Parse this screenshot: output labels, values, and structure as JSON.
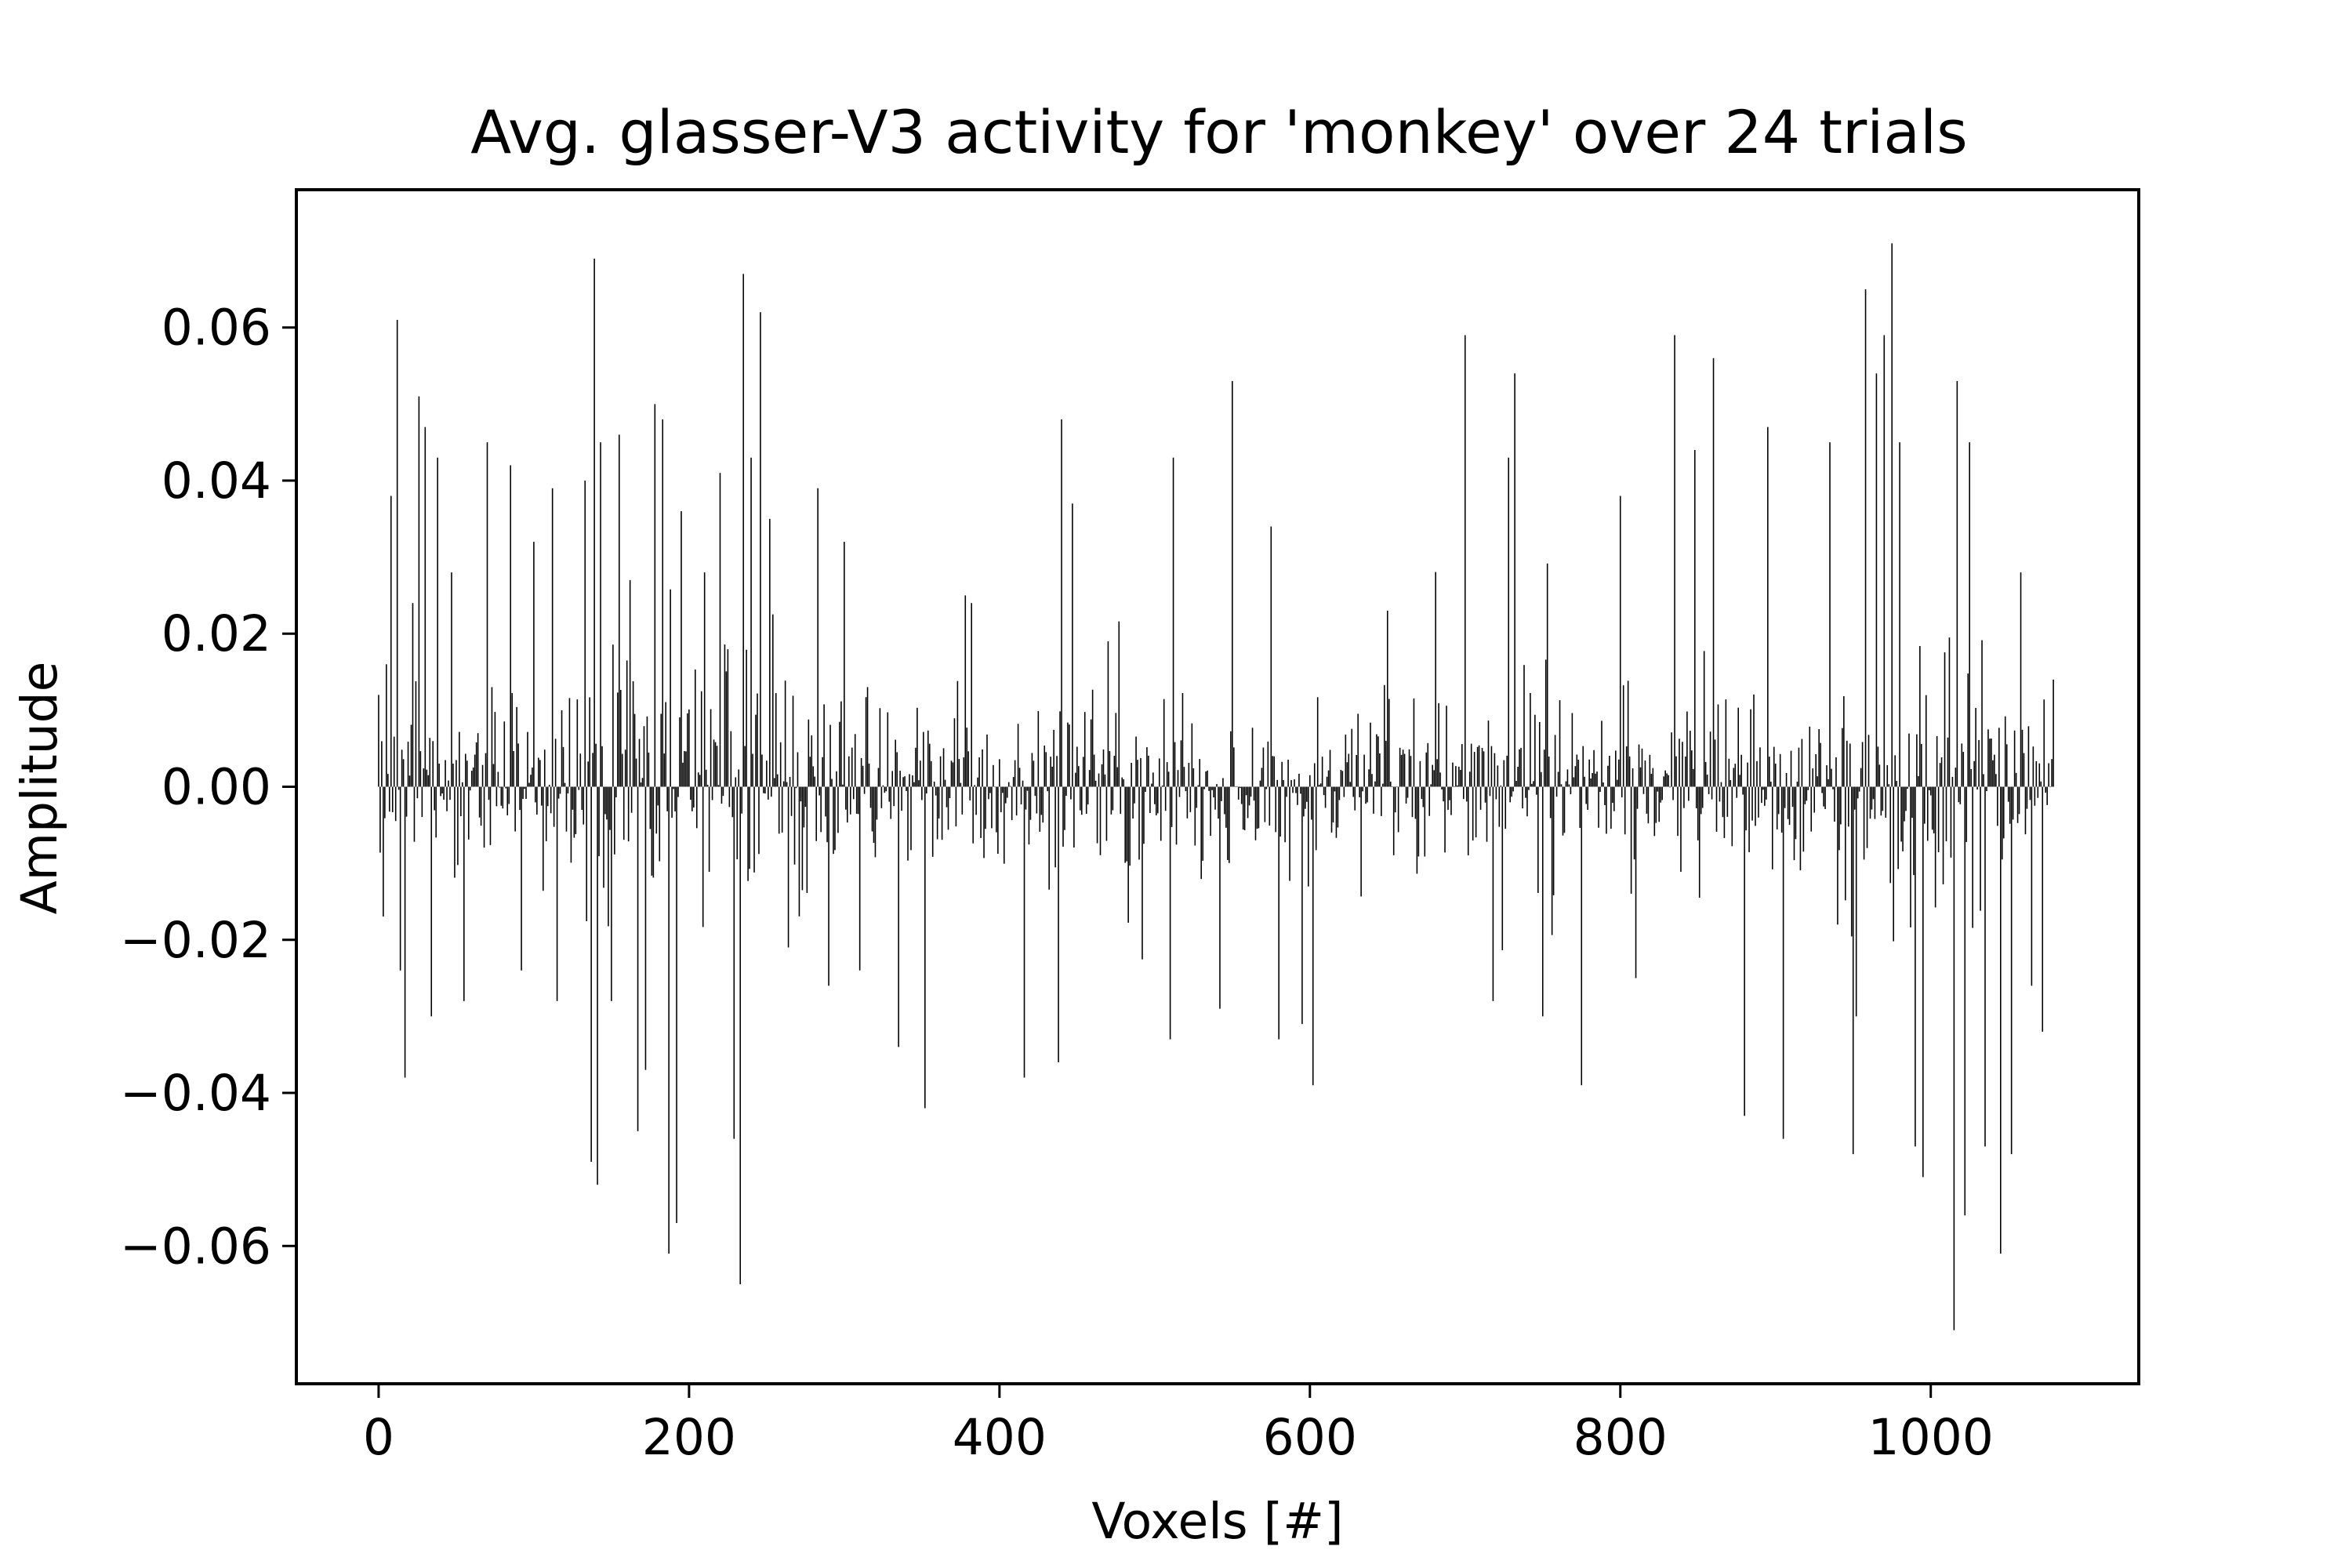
{
  "chart_data": {
    "type": "bar",
    "title": "Avg. glasser-V3 activity for 'monkey' over 24 trials",
    "xlabel": "Voxels [#]",
    "ylabel": "Amplitude",
    "xlim": [
      -53,
      1134
    ],
    "ylim": [
      -0.078,
      0.078
    ],
    "xticks": [
      0,
      200,
      400,
      600,
      800,
      1000
    ],
    "xtick_labels": [
      "0",
      "200",
      "400",
      "600",
      "800",
      "1000"
    ],
    "yticks": [
      -0.06,
      -0.04,
      -0.02,
      0.0,
      0.02,
      0.04,
      0.06
    ],
    "ytick_labels": [
      "−0.06",
      "−0.04",
      "−0.02",
      "0.00",
      "0.02",
      "0.04",
      "0.06"
    ],
    "grid": false,
    "legend": "none",
    "bar_color": "#000000",
    "bar_edge_color": "#000000",
    "n_bars": 1080,
    "peaks": [
      {
        "x": 0,
        "y": 0.012
      },
      {
        "x": 5,
        "y": 0.016
      },
      {
        "x": 8,
        "y": 0.038
      },
      {
        "x": 12,
        "y": 0.061
      },
      {
        "x": 14,
        "y": -0.024
      },
      {
        "x": 17,
        "y": -0.038
      },
      {
        "x": 22,
        "y": 0.024
      },
      {
        "x": 26,
        "y": 0.051
      },
      {
        "x": 30,
        "y": 0.047
      },
      {
        "x": 34,
        "y": -0.03
      },
      {
        "x": 38,
        "y": 0.043
      },
      {
        "x": 47,
        "y": 0.028
      },
      {
        "x": 55,
        "y": -0.028
      },
      {
        "x": 70,
        "y": 0.045
      },
      {
        "x": 85,
        "y": 0.042
      },
      {
        "x": 92,
        "y": -0.024
      },
      {
        "x": 100,
        "y": 0.032
      },
      {
        "x": 112,
        "y": 0.039
      },
      {
        "x": 115,
        "y": -0.028
      },
      {
        "x": 133,
        "y": 0.04
      },
      {
        "x": 137,
        "y": -0.049
      },
      {
        "x": 139,
        "y": 0.069
      },
      {
        "x": 141,
        "y": -0.052
      },
      {
        "x": 143,
        "y": 0.045
      },
      {
        "x": 150,
        "y": -0.028
      },
      {
        "x": 155,
        "y": 0.046
      },
      {
        "x": 162,
        "y": 0.027
      },
      {
        "x": 167,
        "y": -0.045
      },
      {
        "x": 172,
        "y": -0.037
      },
      {
        "x": 178,
        "y": 0.05
      },
      {
        "x": 183,
        "y": 0.048
      },
      {
        "x": 187,
        "y": -0.061
      },
      {
        "x": 192,
        "y": -0.057
      },
      {
        "x": 195,
        "y": 0.036
      },
      {
        "x": 210,
        "y": 0.028
      },
      {
        "x": 220,
        "y": 0.041
      },
      {
        "x": 229,
        "y": -0.046
      },
      {
        "x": 233,
        "y": -0.065
      },
      {
        "x": 235,
        "y": 0.067
      },
      {
        "x": 240,
        "y": 0.043
      },
      {
        "x": 246,
        "y": 0.062
      },
      {
        "x": 252,
        "y": 0.035
      },
      {
        "x": 264,
        "y": -0.021
      },
      {
        "x": 283,
        "y": 0.039
      },
      {
        "x": 290,
        "y": -0.026
      },
      {
        "x": 300,
        "y": 0.032
      },
      {
        "x": 310,
        "y": -0.024
      },
      {
        "x": 335,
        "y": -0.034
      },
      {
        "x": 352,
        "y": -0.042
      },
      {
        "x": 378,
        "y": 0.025
      },
      {
        "x": 382,
        "y": 0.024
      },
      {
        "x": 416,
        "y": -0.038
      },
      {
        "x": 438,
        "y": -0.036
      },
      {
        "x": 440,
        "y": 0.048
      },
      {
        "x": 447,
        "y": 0.037
      },
      {
        "x": 470,
        "y": 0.019
      },
      {
        "x": 510,
        "y": -0.033
      },
      {
        "x": 512,
        "y": 0.043
      },
      {
        "x": 542,
        "y": -0.029
      },
      {
        "x": 550,
        "y": 0.053
      },
      {
        "x": 575,
        "y": 0.034
      },
      {
        "x": 580,
        "y": -0.033
      },
      {
        "x": 595,
        "y": -0.031
      },
      {
        "x": 602,
        "y": -0.039
      },
      {
        "x": 650,
        "y": 0.023
      },
      {
        "x": 700,
        "y": 0.059
      },
      {
        "x": 718,
        "y": -0.028
      },
      {
        "x": 728,
        "y": 0.043
      },
      {
        "x": 732,
        "y": 0.054
      },
      {
        "x": 750,
        "y": -0.03
      },
      {
        "x": 775,
        "y": -0.039
      },
      {
        "x": 800,
        "y": 0.038
      },
      {
        "x": 810,
        "y": -0.025
      },
      {
        "x": 835,
        "y": 0.059
      },
      {
        "x": 848,
        "y": 0.044
      },
      {
        "x": 860,
        "y": 0.056
      },
      {
        "x": 880,
        "y": -0.043
      },
      {
        "x": 895,
        "y": 0.047
      },
      {
        "x": 905,
        "y": -0.046
      },
      {
        "x": 935,
        "y": 0.045
      },
      {
        "x": 950,
        "y": -0.048
      },
      {
        "x": 952,
        "y": -0.03
      },
      {
        "x": 958,
        "y": 0.065
      },
      {
        "x": 965,
        "y": 0.054
      },
      {
        "x": 970,
        "y": 0.059
      },
      {
        "x": 975,
        "y": 0.071
      },
      {
        "x": 980,
        "y": 0.045
      },
      {
        "x": 990,
        "y": -0.047
      },
      {
        "x": 995,
        "y": -0.051
      },
      {
        "x": 1015,
        "y": -0.071
      },
      {
        "x": 1017,
        "y": 0.053
      },
      {
        "x": 1022,
        "y": -0.056
      },
      {
        "x": 1025,
        "y": 0.045
      },
      {
        "x": 1035,
        "y": -0.047
      },
      {
        "x": 1045,
        "y": -0.061
      },
      {
        "x": 1052,
        "y": -0.048
      },
      {
        "x": 1058,
        "y": 0.028
      },
      {
        "x": 1065,
        "y": -0.026
      },
      {
        "x": 1072,
        "y": -0.032
      },
      {
        "x": 1079,
        "y": 0.014
      }
    ]
  }
}
